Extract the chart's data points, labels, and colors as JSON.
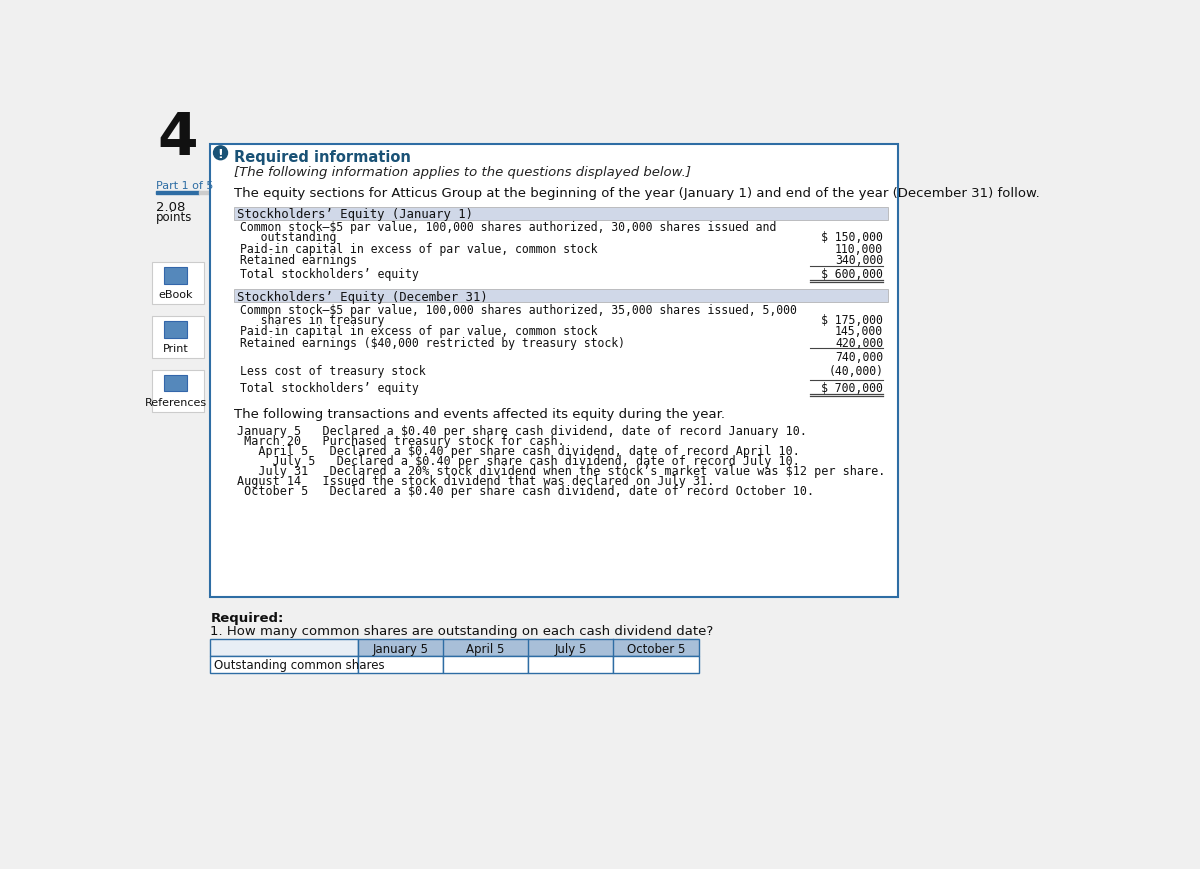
{
  "bg_color": "#f0f0f0",
  "main_box_color": "#ffffff",
  "main_box_border": "#2e6da4",
  "header_bg": "#d0d8e8",
  "required_info_color": "#1a5276",
  "title_number": "4",
  "part_label": "Part 1 of 5",
  "jan1_header": "Stockholders’ Equity (January 1)",
  "jan1_line1": "Common stock–$5 par value, 100,000 shares authorized, 30,000 shares issued and",
  "jan1_line1b": "   outstanding",
  "jan1_val1": "$ 150,000",
  "jan1_line2": "Paid-in capital in excess of par value, common stock",
  "jan1_val2": "110,000",
  "jan1_line3": "Retained earnings",
  "jan1_val3": "340,000",
  "jan1_line4": "Total stockholders’ equity",
  "jan1_val4": "$ 600,000",
  "dec31_header": "Stockholders’ Equity (December 31)",
  "dec31_line1": "Common stock–$5 par value, 100,000 shares authorized, 35,000 shares issued, 5,000",
  "dec31_line1b": "   shares in treasury",
  "dec31_val1": "$ 175,000",
  "dec31_line2": "Paid-in capital in excess of par value, common stock",
  "dec31_val2": "145,000",
  "dec31_line3": "Retained earnings ($40,000 restricted by treasury stock)",
  "dec31_val3": "420,000",
  "dec31_subtotal": "740,000",
  "dec31_line4": "Less cost of treasury stock",
  "dec31_val4": "(40,000)",
  "dec31_line5": "Total stockholders’ equity",
  "dec31_val5": "$ 700,000",
  "transactions_intro": "The following transactions and events affected its equity during the year.",
  "transactions": [
    "January 5   Declared a $0.40 per share cash dividend, date of record January 10.",
    " March 20   Purchased treasury stock for cash.",
    "   April 5   Declared a $0.40 per share cash dividend, date of record April 10.",
    "     July 5   Declared a $0.40 per share cash dividend, date of record July 10.",
    "   July 31   Declared a 20% stock dividend when the stock’s market value was $12 per share.",
    "August 14   Issued the stock dividend that was declared on July 31.",
    " October 5   Declared a $0.40 per share cash dividend, date of record October 10."
  ],
  "required_label": "Required:",
  "required_question": "1. How many common shares are outstanding on each cash dividend date?",
  "table_headers": [
    "January 5",
    "April 5",
    "July 5",
    "October 5"
  ],
  "table_row_label": "Outstanding common shares",
  "table_header_bg": "#a8bfd8",
  "table_header_fg": "#000000",
  "table_border": "#2e6da4",
  "info_icon_color": "#1a5276",
  "italic_subtitle": "[The following information applies to the questions displayed below.]",
  "intro_text": "The equity sections for Atticus Group at the beginning of the year (January 1) and end of the year (December 31) follow.",
  "required_info_title": "Required information",
  "mono_font": "DejaVu Sans Mono",
  "sans_font": "DejaVu Sans"
}
